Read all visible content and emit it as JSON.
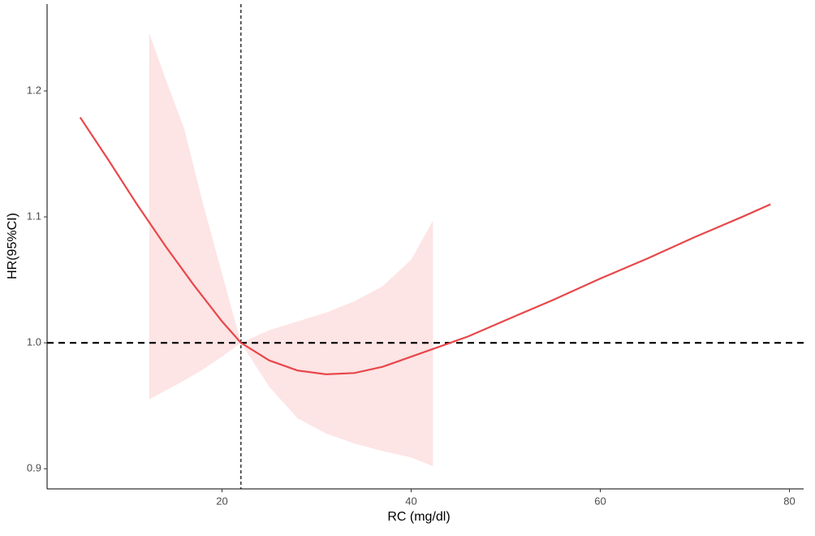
{
  "chart_data": {
    "type": "line",
    "x_label": "RC (mg/dl)",
    "y_label": "HR(95%CI)",
    "x": [
      5,
      8,
      11,
      14,
      17,
      20,
      22,
      25,
      28,
      31,
      34,
      37,
      40,
      43,
      46,
      50,
      55,
      60,
      65,
      70,
      75,
      78
    ],
    "series": [
      {
        "color": "#e8474a",
        "values": [
          1.179,
          1.145,
          1.11,
          1.077,
          1.046,
          1.017,
          1.0,
          0.986,
          0.978,
          0.975,
          0.976,
          0.981,
          0.989,
          0.997,
          1.005,
          1.018,
          1.034,
          1.051,
          1.067,
          1.084,
          1.1,
          1.11
        ]
      }
    ],
    "band": {
      "color": "#fde4e5",
      "x": [
        12.3,
        14,
        16,
        18,
        20,
        22,
        25,
        28,
        31,
        34,
        37,
        40,
        42.3
      ],
      "upper": [
        1.246,
        1.21,
        1.17,
        1.11,
        1.055,
        1.0,
        1.01,
        1.017,
        1.024,
        1.033,
        1.045,
        1.066,
        1.097
      ],
      "lower": [
        0.955,
        0.962,
        0.97,
        0.979,
        0.989,
        1.0,
        0.965,
        0.94,
        0.928,
        0.92,
        0.914,
        0.909,
        0.902
      ]
    },
    "hline": 1,
    "vline": 22,
    "xlim": [
      1.5,
      81.5
    ],
    "ylim": [
      0.884,
      1.269
    ],
    "xticks": [
      20,
      40,
      60,
      80
    ],
    "yticks": [
      0.9,
      {
        "value": 1,
        "label": "1.0"
      },
      1.1,
      1.2
    ]
  }
}
